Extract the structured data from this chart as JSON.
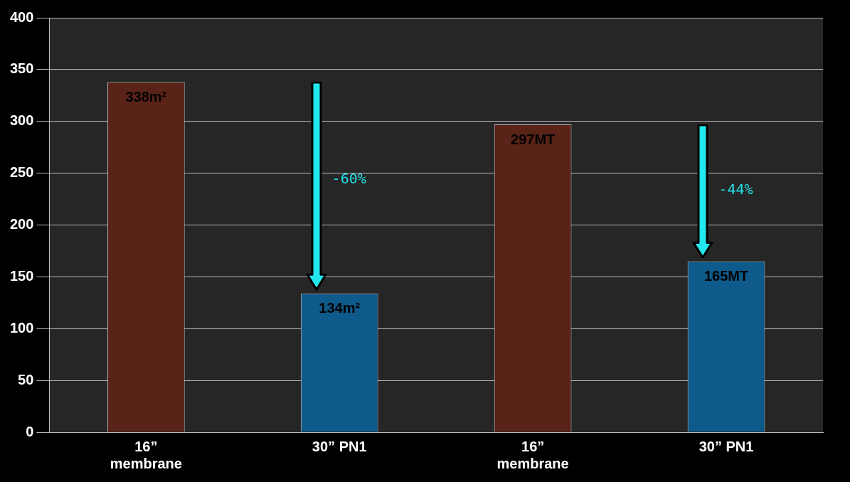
{
  "chart_data": {
    "type": "bar",
    "categories": [
      "16” membrane",
      "30” PN1",
      "16” membrane",
      "30” PN1"
    ],
    "values": [
      338,
      134,
      297,
      165
    ],
    "colors": [
      "#5a2318",
      "#0e5a8a",
      "#5a2318",
      "#0e5a8a"
    ],
    "value_labels": [
      "338m²",
      "134m²",
      "297MT",
      "165MT"
    ],
    "annotations": [
      "-60%",
      "-44%"
    ],
    "ylim": [
      0,
      400
    ],
    "yticks": [
      0,
      50,
      100,
      150,
      200,
      250,
      300,
      350,
      400
    ],
    "grid": "y",
    "legend": false
  }
}
